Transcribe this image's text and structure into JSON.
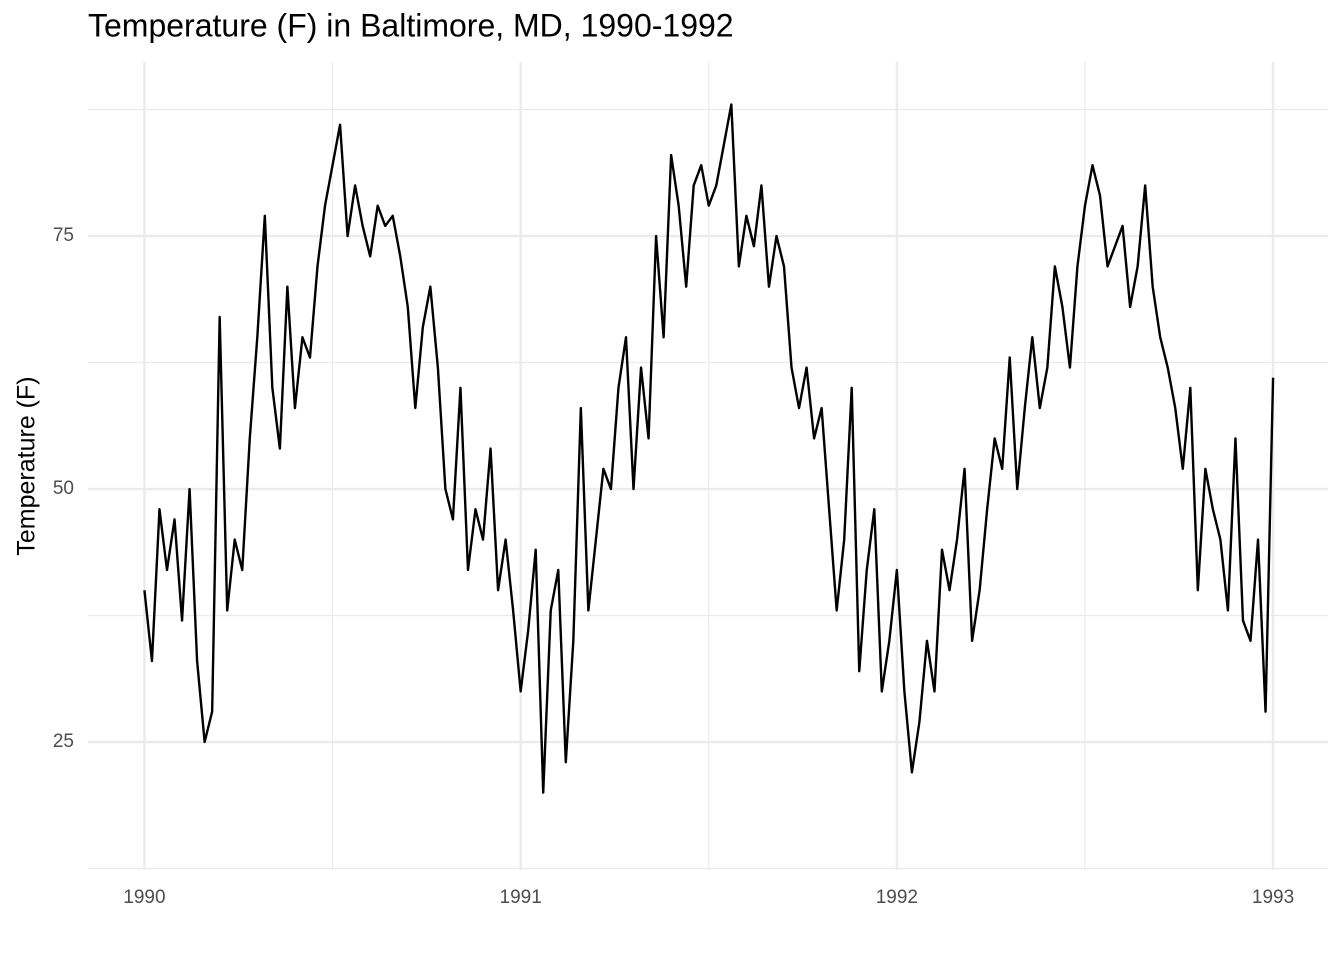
{
  "chart_data": {
    "type": "line",
    "title": "Temperature (F) in Baltimore, MD, 1990-1992",
    "y_label": "Temperature (F)",
    "x": [
      1990.0,
      1990.02,
      1990.04,
      1990.06,
      1990.08,
      1990.1,
      1990.12,
      1990.14,
      1990.16,
      1990.18,
      1990.2,
      1990.22,
      1990.24,
      1990.26,
      1990.28,
      1990.3,
      1990.32,
      1990.34,
      1990.36,
      1990.38,
      1990.4,
      1990.42,
      1990.44,
      1990.46,
      1990.48,
      1990.5,
      1990.52,
      1990.54,
      1990.56,
      1990.58,
      1990.6,
      1990.62,
      1990.64,
      1990.66,
      1990.68,
      1990.7,
      1990.72,
      1990.74,
      1990.76,
      1990.78,
      1990.8,
      1990.82,
      1990.84,
      1990.86,
      1990.88,
      1990.9,
      1990.92,
      1990.94,
      1990.96,
      1990.98,
      1991.0,
      1991.02,
      1991.04,
      1991.06,
      1991.08,
      1991.1,
      1991.12,
      1991.14,
      1991.16,
      1991.18,
      1991.2,
      1991.22,
      1991.24,
      1991.26,
      1991.28,
      1991.3,
      1991.32,
      1991.34,
      1991.36,
      1991.38,
      1991.4,
      1991.42,
      1991.44,
      1991.46,
      1991.48,
      1991.5,
      1991.52,
      1991.54,
      1991.56,
      1991.58,
      1991.6,
      1991.62,
      1991.64,
      1991.66,
      1991.68,
      1991.7,
      1991.72,
      1991.74,
      1991.76,
      1991.78,
      1991.8,
      1991.82,
      1991.84,
      1991.86,
      1991.88,
      1991.9,
      1991.92,
      1991.94,
      1991.96,
      1991.98,
      1992.0,
      1992.02,
      1992.04,
      1992.06,
      1992.08,
      1992.1,
      1992.12,
      1992.14,
      1992.16,
      1992.18,
      1992.2,
      1992.22,
      1992.24,
      1992.26,
      1992.28,
      1992.3,
      1992.32,
      1992.34,
      1992.36,
      1992.38,
      1992.4,
      1992.42,
      1992.44,
      1992.46,
      1992.48,
      1992.5,
      1992.52,
      1992.54,
      1992.56,
      1992.58,
      1992.6,
      1992.62,
      1992.64,
      1992.66,
      1992.68,
      1992.7,
      1992.72,
      1992.74,
      1992.76,
      1992.78,
      1992.8,
      1992.82,
      1992.84,
      1992.86,
      1992.88,
      1992.9,
      1992.92,
      1992.94,
      1992.96,
      1992.98,
      1993.0
    ],
    "series": [
      {
        "color": "#000000",
        "values": [
          40,
          33,
          48,
          42,
          47,
          37,
          50,
          33,
          25,
          28,
          67,
          38,
          45,
          42,
          55,
          65,
          77,
          60,
          54,
          70,
          58,
          65,
          63,
          72,
          78,
          82,
          86,
          75,
          80,
          76,
          73,
          78,
          76,
          77,
          73,
          68,
          58,
          66,
          70,
          62,
          50,
          47,
          60,
          42,
          48,
          45,
          54,
          40,
          45,
          38,
          30,
          36,
          44,
          20,
          38,
          42,
          23,
          35,
          58,
          38,
          45,
          52,
          50,
          60,
          65,
          50,
          62,
          55,
          75,
          65,
          83,
          78,
          70,
          80,
          82,
          78,
          80,
          84,
          88,
          72,
          77,
          74,
          80,
          70,
          75,
          72,
          62,
          58,
          62,
          55,
          58,
          48,
          38,
          45,
          60,
          32,
          42,
          48,
          30,
          35,
          42,
          30,
          22,
          27,
          35,
          30,
          44,
          40,
          45,
          52,
          35,
          40,
          48,
          55,
          52,
          63,
          50,
          58,
          65,
          58,
          62,
          72,
          68,
          62,
          72,
          78,
          82,
          79,
          72,
          74,
          76,
          68,
          72,
          80,
          70,
          65,
          62,
          58,
          52,
          60,
          40,
          52,
          48,
          45,
          38,
          55,
          37,
          35,
          45,
          28,
          61
        ]
      }
    ],
    "xlim": [
      1989.85,
      1993.146
    ],
    "ylim": [
      12.35,
      92.2
    ],
    "xticks": [
      1990,
      1991,
      1992,
      1993
    ],
    "yticks": [
      25,
      50,
      75
    ],
    "minor_xticks": [
      1990.5,
      1991.5,
      1992.5
    ],
    "minor_yticks": [
      12.5,
      37.5,
      62.5,
      87.5
    ],
    "grid": true,
    "grid_color": "#ebebeb"
  }
}
